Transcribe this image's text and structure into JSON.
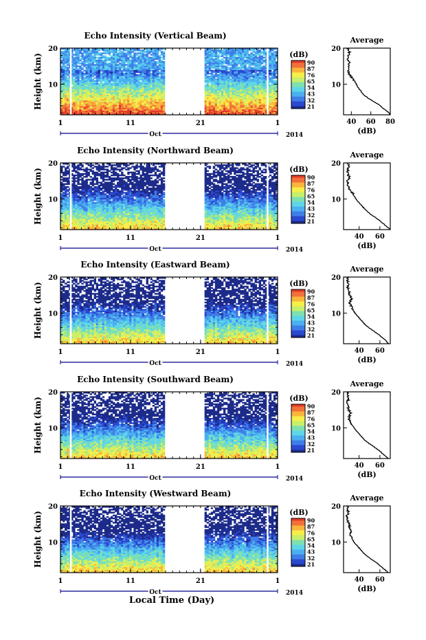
{
  "colors": {
    "colormap": [
      "#1c2b8a",
      "#2a49d0",
      "#3f7ee8",
      "#4bb0f0",
      "#5fd6e8",
      "#7fe0b0",
      "#c8ef6a",
      "#f6ee4a",
      "#f9b53c",
      "#f2713a",
      "#e23a2a"
    ],
    "axis": "#000000",
    "date_axis": "#00008b"
  },
  "xlabel_bottom": "Local Time (Day)",
  "chart_data": [
    {
      "type": "heatmap",
      "title": "Echo Intensity (Vertical Beam)",
      "ylabel": "Height (km)",
      "yticks": [
        "20",
        "10"
      ],
      "xticks": [
        "1",
        "11",
        "21",
        "1"
      ],
      "month_label": "Oct",
      "year_label": "2014",
      "ylim": [
        1.5,
        20
      ],
      "colorbar_label": "(dB)",
      "colorbar_ticks": [
        "90",
        "87",
        "76",
        "65",
        "54",
        "43",
        "32",
        "21"
      ],
      "data_gaps_days": [
        16.2,
        21.5
      ],
      "profile": {
        "title": "Average",
        "xlabel": "(dB)",
        "xticks": [
          "40",
          "60",
          "80"
        ],
        "xlim": [
          32,
          80
        ],
        "heights_km": [
          1.5,
          2,
          3,
          4,
          5,
          6,
          7,
          8,
          9,
          10,
          11,
          12,
          13,
          14,
          15,
          16,
          17,
          18,
          19,
          20
        ],
        "values_db": [
          80,
          79,
          74,
          70,
          64,
          58,
          53,
          50,
          47,
          45,
          43,
          40,
          37,
          37,
          37,
          38,
          36,
          37,
          38,
          36
        ]
      }
    },
    {
      "type": "heatmap",
      "title": "Echo Intensity (Northward Beam)",
      "ylabel": "Height (km)",
      "yticks": [
        "20",
        "10"
      ],
      "xticks": [
        "1",
        "11",
        "21",
        "1"
      ],
      "month_label": "Oct",
      "year_label": "2014",
      "ylim": [
        1.5,
        20
      ],
      "colorbar_label": "(dB)",
      "colorbar_ticks": [
        "90",
        "87",
        "76",
        "65",
        "54",
        "43",
        "32",
        "21"
      ],
      "data_gaps_days": [
        16.2,
        21.5
      ],
      "profile": {
        "title": "Average",
        "xlabel": "(dB)",
        "xticks": [
          "40",
          "60"
        ],
        "xlim": [
          25,
          70
        ],
        "heights_km": [
          1.5,
          2,
          3,
          4,
          5,
          6,
          7,
          8,
          9,
          10,
          11,
          12,
          13,
          14,
          15,
          16,
          17,
          18,
          19,
          20
        ],
        "values_db": [
          70,
          68,
          64,
          60,
          55,
          50,
          46,
          43,
          40,
          37,
          35,
          33,
          30,
          29,
          29,
          31,
          29,
          29,
          30,
          29
        ]
      }
    },
    {
      "type": "heatmap",
      "title": "Echo Intensity (Eastward Beam)",
      "ylabel": "Height (km)",
      "yticks": [
        "20",
        "10"
      ],
      "xticks": [
        "1",
        "11",
        "21",
        "1"
      ],
      "month_label": "Oct",
      "year_label": "2014",
      "ylim": [
        1.5,
        20
      ],
      "colorbar_label": "(dB)",
      "colorbar_ticks": [
        "90",
        "87",
        "76",
        "65",
        "54",
        "43",
        "32",
        "21"
      ],
      "data_gaps_days": [
        16.2,
        21.5
      ],
      "profile": {
        "title": "Average",
        "xlabel": "(dB)",
        "xticks": [
          "40",
          "60"
        ],
        "xlim": [
          25,
          70
        ],
        "heights_km": [
          1.5,
          2,
          3,
          4,
          5,
          6,
          7,
          8,
          9,
          10,
          11,
          12,
          13,
          14,
          15,
          16,
          17,
          18,
          19,
          20
        ],
        "values_db": [
          68,
          67,
          63,
          59,
          54,
          49,
          45,
          42,
          39,
          36,
          34,
          32,
          31,
          33,
          31,
          30,
          29,
          30,
          29,
          29
        ]
      }
    },
    {
      "type": "heatmap",
      "title": "Echo Intensity (Southward Beam)",
      "ylabel": "Height (km)",
      "yticks": [
        "20",
        "10"
      ],
      "xticks": [
        "1",
        "11",
        "21",
        "1"
      ],
      "month_label": "Oct",
      "year_label": "2014",
      "ylim": [
        1.5,
        20
      ],
      "colorbar_label": "(dB)",
      "colorbar_ticks": [
        "90",
        "87",
        "76",
        "65",
        "54",
        "43",
        "32",
        "21"
      ],
      "data_gaps_days": [
        16.2,
        21.5
      ],
      "profile": {
        "title": "Average",
        "xlabel": "(dB)",
        "xticks": [
          "40",
          "60"
        ],
        "xlim": [
          25,
          70
        ],
        "heights_km": [
          1.5,
          2,
          3,
          4,
          5,
          6,
          7,
          8,
          9,
          10,
          11,
          12,
          13,
          14,
          15,
          16,
          17,
          18,
          19,
          20
        ],
        "values_db": [
          68,
          66,
          62,
          58,
          53,
          48,
          44,
          41,
          38,
          35,
          33,
          31,
          30,
          32,
          30,
          29,
          28,
          30,
          29,
          29
        ]
      }
    },
    {
      "type": "heatmap",
      "title": "Echo Intensity (Westward Beam)",
      "ylabel": "Height (km)",
      "yticks": [
        "20",
        "10"
      ],
      "xticks": [
        "1",
        "11",
        "21",
        "1"
      ],
      "month_label": "Oct",
      "year_label": "2014",
      "ylim": [
        1.5,
        20
      ],
      "colorbar_label": "(dB)",
      "colorbar_ticks": [
        "90",
        "87",
        "76",
        "65",
        "54",
        "43",
        "32",
        "21"
      ],
      "data_gaps_days": [
        16.2,
        21.5
      ],
      "profile": {
        "title": "Average",
        "xlabel": "(dB)",
        "xticks": [
          "40",
          "60"
        ],
        "xlim": [
          25,
          70
        ],
        "heights_km": [
          1.5,
          2,
          3,
          4,
          5,
          6,
          7,
          8,
          9,
          10,
          11,
          12,
          13,
          14,
          15,
          16,
          17,
          18,
          19,
          20
        ],
        "values_db": [
          68,
          66,
          62,
          58,
          53,
          48,
          44,
          41,
          38,
          35,
          33,
          31,
          33,
          31,
          30,
          29,
          28,
          30,
          29,
          29
        ]
      }
    }
  ]
}
